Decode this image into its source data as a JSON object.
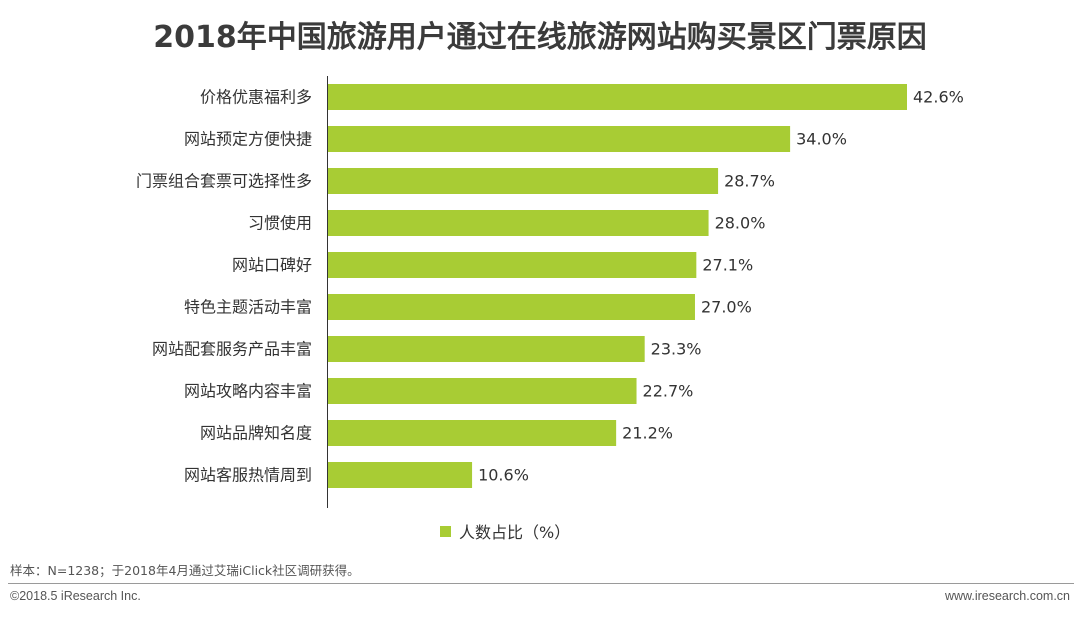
{
  "colors": {
    "bar": "#a8cc34",
    "axis": "#333333",
    "text": "#333333"
  },
  "chart_data": {
    "type": "bar",
    "orientation": "horizontal",
    "title": "2018年中国旅游用户通过在线旅游网站购买景区门票原因",
    "categories": [
      "价格优惠福利多",
      "网站预定方便快捷",
      "门票组合套票可选择性多",
      "习惯使用",
      "网站口碑好",
      "特色主题活动丰富",
      "网站配套服务产品丰富",
      "网站攻略内容丰富",
      "网站品牌知名度",
      "网站客服热情周到"
    ],
    "series": [
      {
        "name": "人数占比（%）",
        "values": [
          42.6,
          34.0,
          28.7,
          28.0,
          27.1,
          27.0,
          23.3,
          22.7,
          21.2,
          10.6
        ],
        "labels": [
          "42.6%",
          "34.0%",
          "28.7%",
          "28.0%",
          "27.1%",
          "27.0%",
          "23.3%",
          "22.7%",
          "21.2%",
          "10.6%"
        ]
      }
    ],
    "xlim": [
      0,
      42.6
    ],
    "grid": false,
    "legend_position": "bottom"
  },
  "footer": {
    "note": "样本：N=1238；于2018年4月通过艾瑞iClick社区调研获得。",
    "copyright": "©2018.5 iResearch Inc.",
    "website": "www.iresearch.com.cn"
  }
}
